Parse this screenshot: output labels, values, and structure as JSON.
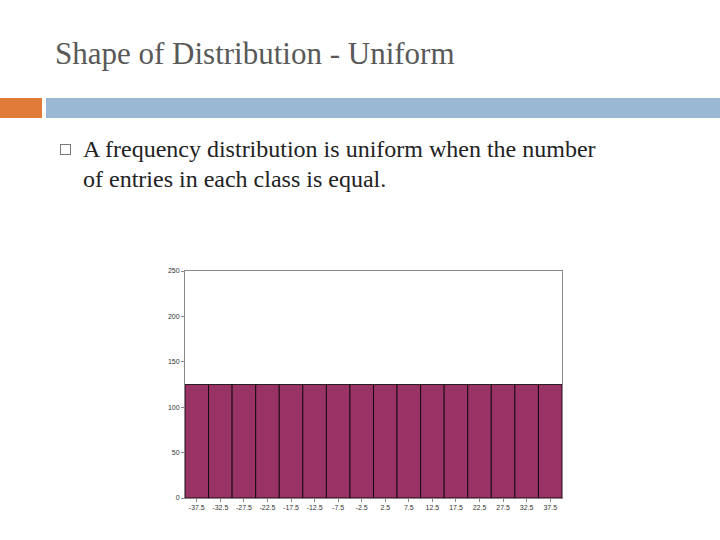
{
  "slide": {
    "title": "Shape of Distribution - Uniform",
    "text": "A frequency distribution is uniform when the number of entries in each class is equal."
  },
  "chart_data": {
    "type": "bar",
    "categories": [
      "-37.5",
      "-32.5",
      "-27.5",
      "-22.5",
      "-17.5",
      "-12.5",
      "-7.5",
      "-2.5",
      "2.5",
      "7.5",
      "12.5",
      "17.5",
      "22.5",
      "27.5",
      "32.5",
      "37.5"
    ],
    "values": [
      125,
      125,
      125,
      125,
      125,
      125,
      125,
      125,
      125,
      125,
      125,
      125,
      125,
      125,
      125,
      125
    ],
    "color": "#993366",
    "ylim": [
      0,
      250
    ],
    "yticks": [
      0,
      50,
      100,
      150,
      200,
      250
    ],
    "grid": false
  }
}
